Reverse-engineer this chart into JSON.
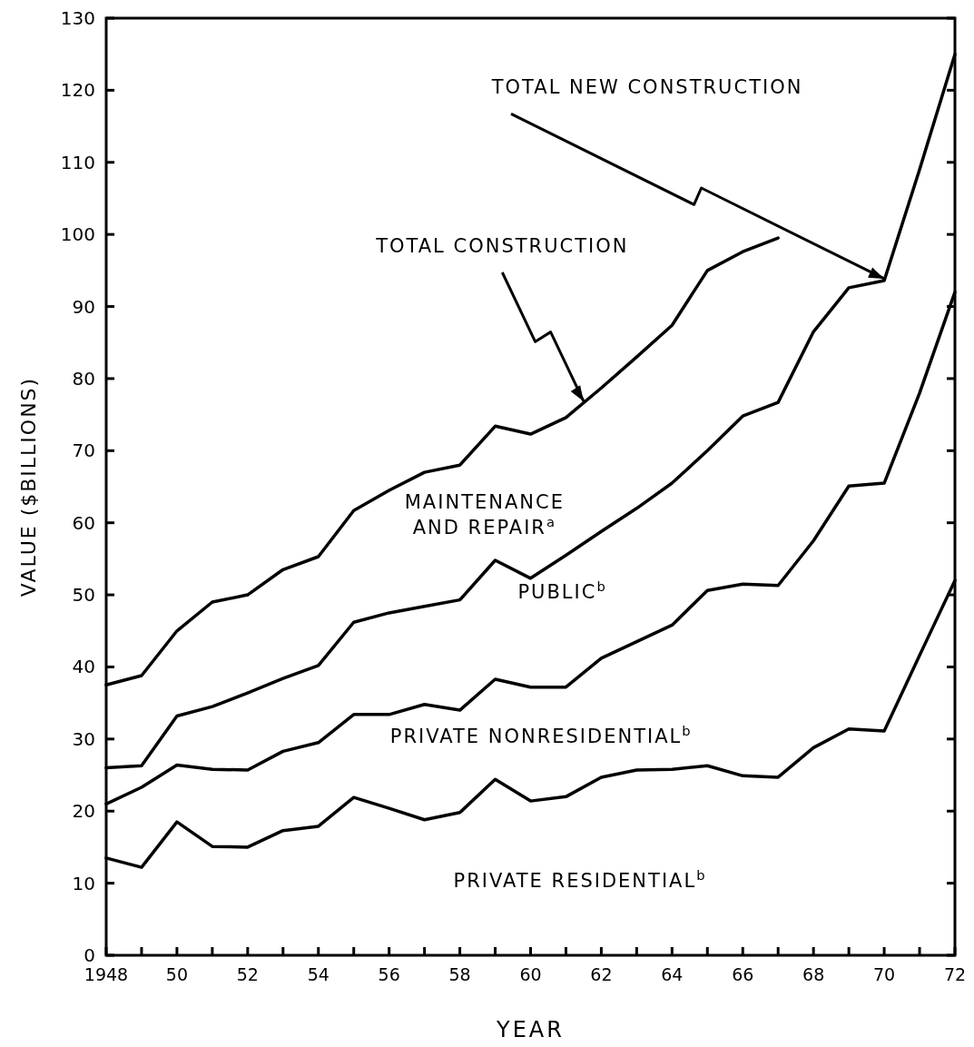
{
  "chart_data": {
    "type": "line",
    "xlabel": "YEAR",
    "ylabel": "VALUE ($BILLIONS)",
    "x": [
      1948,
      1949,
      1950,
      1951,
      1952,
      1953,
      1954,
      1955,
      1956,
      1957,
      1958,
      1959,
      1960,
      1961,
      1962,
      1963,
      1964,
      1965,
      1966,
      1967,
      1968,
      1969,
      1970,
      1971,
      1972
    ],
    "xlim": [
      1948,
      1972
    ],
    "xticks": [
      {
        "value": 1948,
        "label": "1948"
      },
      {
        "value": 1949,
        "label": null
      },
      {
        "value": 1950,
        "label": "50"
      },
      {
        "value": 1951,
        "label": null
      },
      {
        "value": 1952,
        "label": "52"
      },
      {
        "value": 1953,
        "label": null
      },
      {
        "value": 1954,
        "label": "54"
      },
      {
        "value": 1955,
        "label": null
      },
      {
        "value": 1956,
        "label": "56"
      },
      {
        "value": 1957,
        "label": null
      },
      {
        "value": 1958,
        "label": "58"
      },
      {
        "value": 1959,
        "label": null
      },
      {
        "value": 1960,
        "label": "60"
      },
      {
        "value": 1961,
        "label": null
      },
      {
        "value": 1962,
        "label": "62"
      },
      {
        "value": 1963,
        "label": null
      },
      {
        "value": 1964,
        "label": "64"
      },
      {
        "value": 1965,
        "label": null
      },
      {
        "value": 1966,
        "label": "66"
      },
      {
        "value": 1967,
        "label": null
      },
      {
        "value": 1968,
        "label": "68"
      },
      {
        "value": 1969,
        "label": null
      },
      {
        "value": 1970,
        "label": "70"
      },
      {
        "value": 1971,
        "label": null
      },
      {
        "value": 1972,
        "label": "72"
      }
    ],
    "ylim": [
      0,
      130
    ],
    "yticks": [
      0,
      10,
      20,
      30,
      40,
      50,
      60,
      70,
      80,
      90,
      100,
      110,
      120,
      130
    ],
    "grid": false,
    "marker": "none",
    "line_style": "solid",
    "series": [
      {
        "color": "#000000",
        "values": [
          37.5,
          38.8,
          45,
          49,
          50,
          53.5,
          55.3,
          61.7,
          64.5,
          67,
          68,
          73.4,
          72.3,
          74.6,
          78.7,
          83,
          87.4,
          95,
          97.6,
          99.5,
          null,
          null,
          null,
          null,
          null
        ]
      },
      {
        "color": "#000000",
        "values": [
          26,
          26.3,
          33.2,
          34.5,
          36.4,
          38.4,
          40.2,
          46.2,
          47.5,
          48.4,
          49.3,
          54.8,
          52.3,
          55.5,
          58.8,
          62,
          65.5,
          70,
          74.8,
          76.7,
          86.5,
          92.6,
          93.6,
          109,
          125
        ]
      },
      {
        "color": "#000000",
        "values": [
          21,
          23.3,
          26.4,
          25.8,
          25.7,
          28.3,
          29.5,
          33.4,
          33.4,
          34.8,
          34,
          38.3,
          37.2,
          37.2,
          41.2,
          43.5,
          45.8,
          50.6,
          51.5,
          51.3,
          57.5,
          65.1,
          65.5,
          78,
          92
        ]
      },
      {
        "color": "#000000",
        "values": [
          13.5,
          12.2,
          18.5,
          15.1,
          15,
          17.3,
          17.9,
          21.9,
          20.4,
          18.8,
          19.8,
          24.4,
          21.4,
          22,
          24.7,
          25.7,
          25.8,
          26.3,
          24.9,
          24.7,
          28.8,
          31.4,
          31.1,
          41.6,
          52
        ]
      }
    ],
    "annotations": [
      {
        "text": "TOTAL CONSTRUCTION",
        "x": 1961.5,
        "y": 76.6
      },
      {
        "text": "TOTAL NEW CONSTRUCTION",
        "x": 1970,
        "y": 93.6
      },
      "MAINTENANCE\nAND REPAIR$^{a}$",
      "PUBLIC$^{b}$",
      "PRIVATE NONRESIDENTIAL$^{b}$",
      "PRIVATE RESIDENTIAL$^{b}$"
    ]
  }
}
